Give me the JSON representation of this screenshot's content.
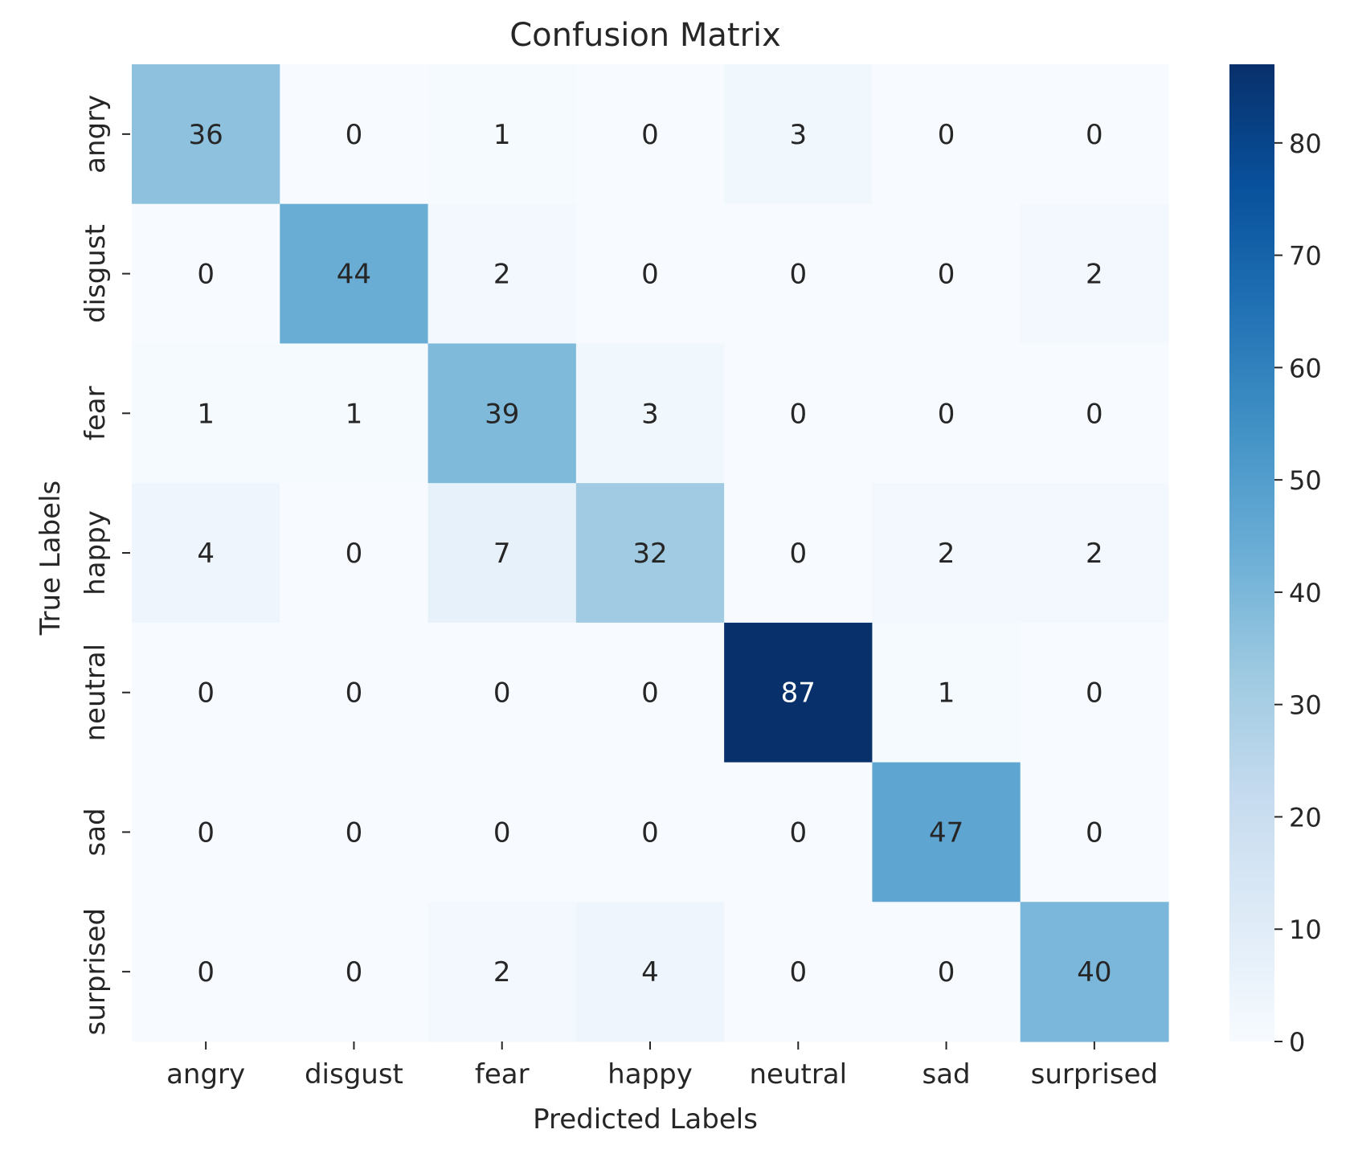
{
  "chart_data": {
    "type": "heatmap",
    "title": "Confusion Matrix",
    "xlabel": "Predicted Labels",
    "ylabel": "True Labels",
    "x_categories": [
      "angry",
      "disgust",
      "fear",
      "happy",
      "neutral",
      "sad",
      "surprised"
    ],
    "y_categories": [
      "angry",
      "disgust",
      "fear",
      "happy",
      "neutral",
      "sad",
      "surprised"
    ],
    "values": [
      [
        36,
        0,
        1,
        0,
        3,
        0,
        0
      ],
      [
        0,
        44,
        2,
        0,
        0,
        0,
        2
      ],
      [
        1,
        1,
        39,
        3,
        0,
        0,
        0
      ],
      [
        4,
        0,
        7,
        32,
        0,
        2,
        2
      ],
      [
        0,
        0,
        0,
        0,
        87,
        1,
        0
      ],
      [
        0,
        0,
        0,
        0,
        0,
        47,
        0
      ],
      [
        0,
        0,
        2,
        4,
        0,
        0,
        40
      ]
    ],
    "colorbar": {
      "min": 0,
      "max": 87,
      "ticks": [
        0,
        10,
        20,
        30,
        40,
        50,
        60,
        70,
        80
      ],
      "colormap": "Blues"
    },
    "annotation_colors": {
      "dark_text": "#262626",
      "light_text": "#ffffff"
    }
  }
}
